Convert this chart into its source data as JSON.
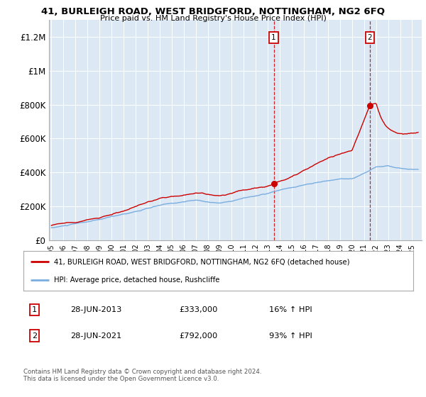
{
  "title": "41, BURLEIGH ROAD, WEST BRIDGFORD, NOTTINGHAM, NG2 6FQ",
  "subtitle": "Price paid vs. HM Land Registry's House Price Index (HPI)",
  "ylim": [
    0,
    1300000
  ],
  "xlim_start": 1994.8,
  "xlim_end": 2025.8,
  "bg_color": "#dce9f5",
  "legend_line1": "41, BURLEIGH ROAD, WEST BRIDGFORD, NOTTINGHAM, NG2 6FQ (detached house)",
  "legend_line2": "HPI: Average price, detached house, Rushcliffe",
  "sale1_date": 2013.49,
  "sale1_price": 333000,
  "sale1_label": "1",
  "sale2_date": 2021.49,
  "sale2_price": 792000,
  "sale2_label": "2",
  "red_color": "#cc0000",
  "blue_color": "#7aade0",
  "annotation1_date": "28-JUN-2013",
  "annotation1_price": "£333,000",
  "annotation1_hpi": "16% ↑ HPI",
  "annotation2_date": "28-JUN-2021",
  "annotation2_price": "£792,000",
  "annotation2_hpi": "93% ↑ HPI",
  "footer": "Contains HM Land Registry data © Crown copyright and database right 2024.\nThis data is licensed under the Open Government Licence v3.0."
}
